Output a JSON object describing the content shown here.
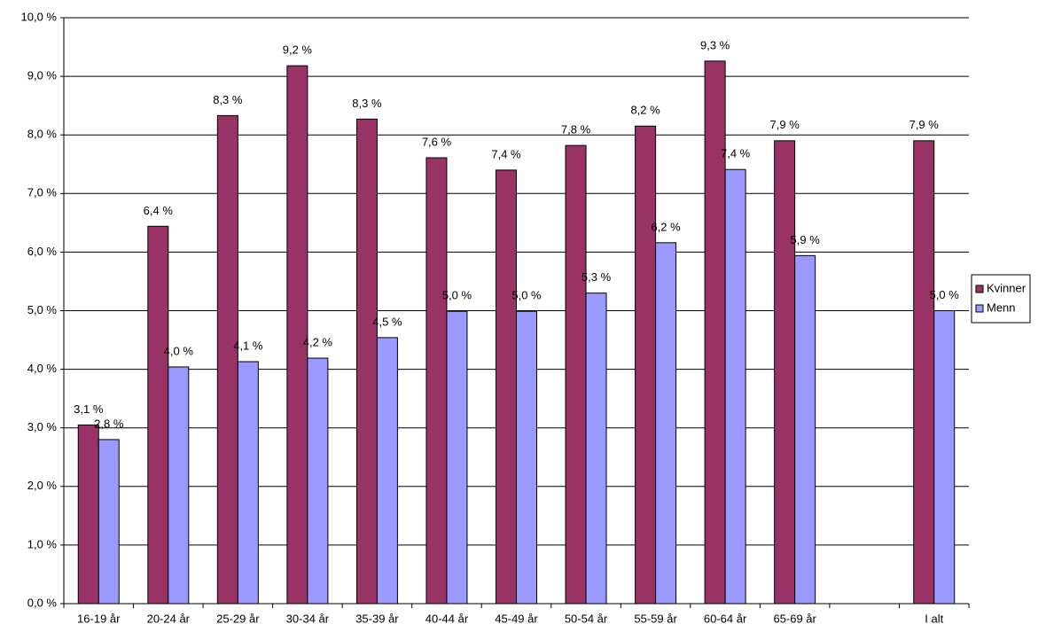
{
  "chart_data": {
    "type": "bar",
    "categories": [
      "16-19 år",
      "20-24 år",
      "25-29 år",
      "30-34 år",
      "35-39 år",
      "40-44 år",
      "45-49 år",
      "50-54 år",
      "55-59 år",
      "60-64 år",
      "65-69 år",
      null,
      "I alt"
    ],
    "series": [
      {
        "name": "Kvinner",
        "color": "#993366",
        "values": [
          3.05,
          6.44,
          8.33,
          9.18,
          8.27,
          7.61,
          7.4,
          7.82,
          8.15,
          9.26,
          7.9,
          null,
          7.9
        ],
        "value_labels": [
          "3,1 %",
          "6,4 %",
          "8,3 %",
          "9,2 %",
          "8,3 %",
          "7,6 %",
          "7,4 %",
          "7,8 %",
          "8,2 %",
          "9,3 %",
          "7,9 %",
          null,
          "7,9 %"
        ]
      },
      {
        "name": "Menn",
        "color": "#9999ff",
        "values": [
          2.8,
          4.04,
          4.13,
          4.19,
          4.54,
          4.99,
          4.99,
          5.3,
          6.16,
          7.41,
          5.94,
          null,
          5.0
        ],
        "value_labels": [
          "2,8 %",
          "4,0 %",
          "4,1 %",
          "4,2 %",
          "4,5 %",
          "5,0 %",
          "5,0 %",
          "5,3 %",
          "6,2 %",
          "7,4 %",
          "5,9 %",
          null,
          "5,0 %"
        ]
      }
    ],
    "ylim": [
      0,
      10
    ],
    "yticks": [
      {
        "value": 0,
        "label": "0,0 %"
      },
      {
        "value": 1,
        "label": "1,0 %"
      },
      {
        "value": 2,
        "label": "2,0 %"
      },
      {
        "value": 3,
        "label": "3,0 %"
      },
      {
        "value": 4,
        "label": "4,0 %"
      },
      {
        "value": 5,
        "label": "5,0 %"
      },
      {
        "value": 6,
        "label": "6,0 %"
      },
      {
        "value": 7,
        "label": "7,0 %"
      },
      {
        "value": 8,
        "label": "8,0 %"
      },
      {
        "value": 9,
        "label": "9,0 %"
      },
      {
        "value": 10,
        "label": "10,0 %"
      }
    ],
    "grid": true,
    "legend": "right"
  }
}
